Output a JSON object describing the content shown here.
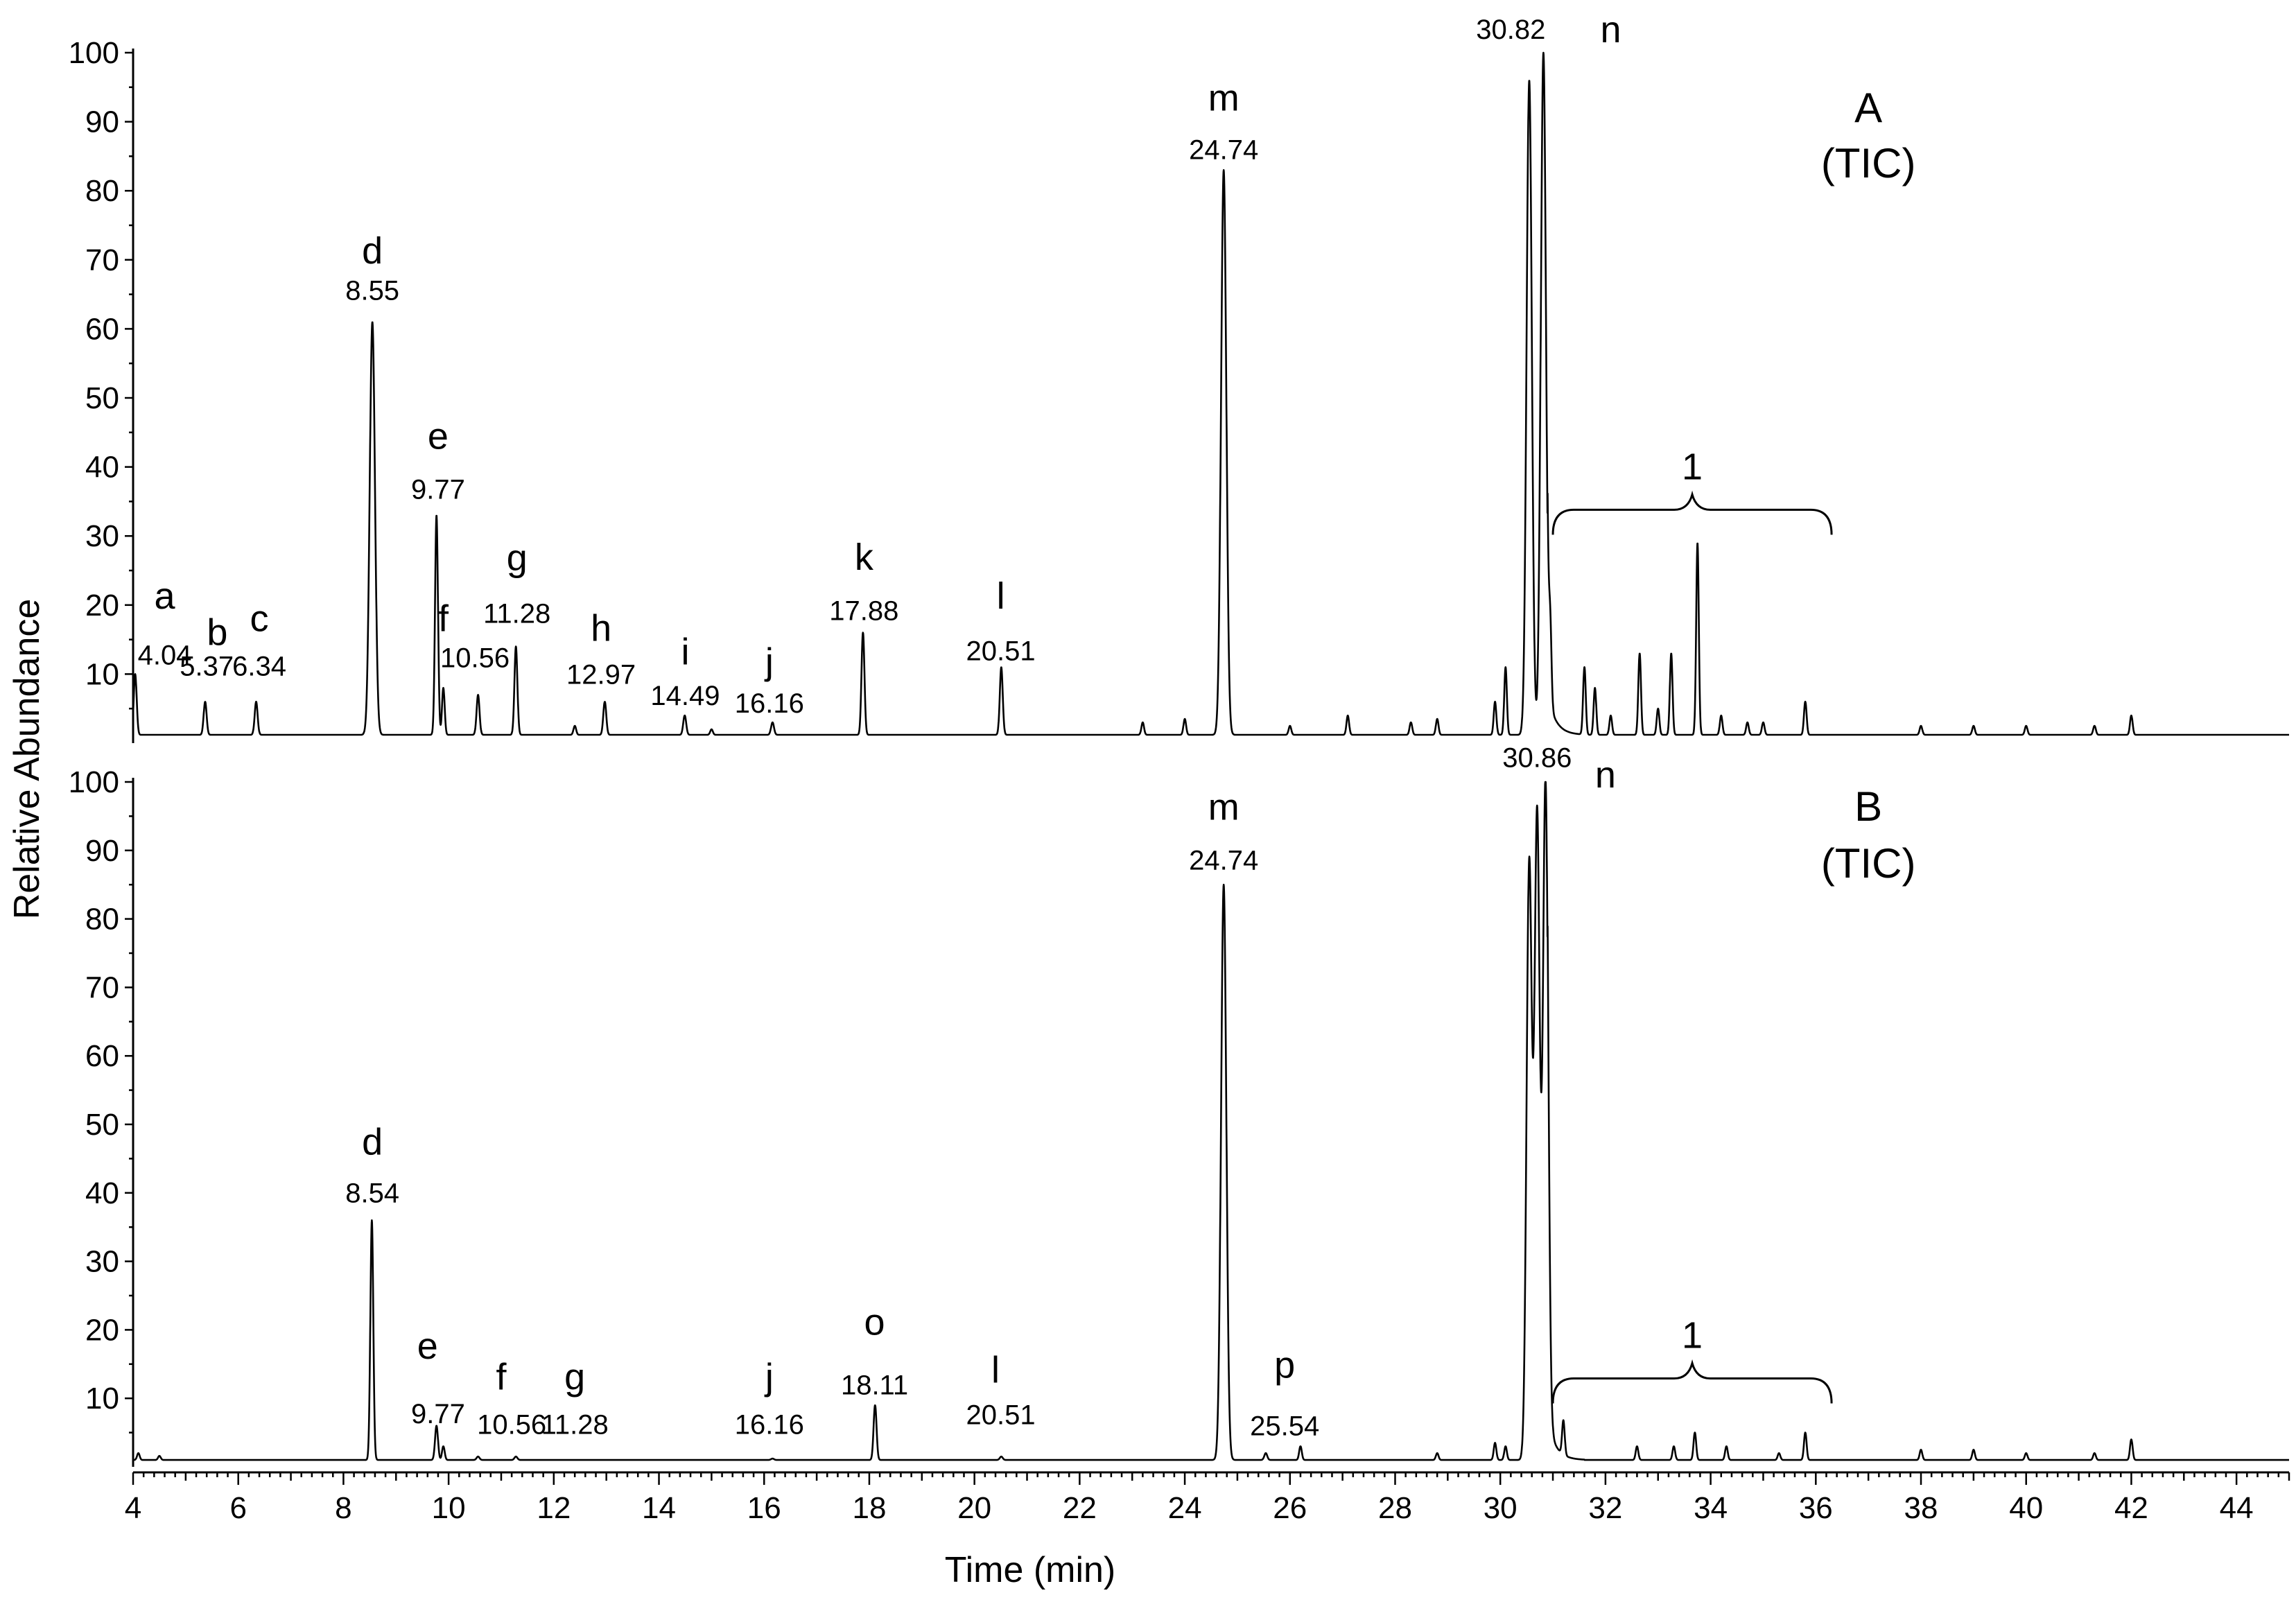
{
  "chart_data": {
    "type": "line",
    "xlabel": "Time (min)",
    "ylabel": "Relative Abundance",
    "xlim": [
      4,
      45
    ],
    "x_ticks": [
      "4",
      "6",
      "8",
      "10",
      "12",
      "14",
      "16",
      "18",
      "20",
      "22",
      "24",
      "26",
      "28",
      "30",
      "32",
      "34",
      "36",
      "38",
      "40",
      "42",
      "44"
    ],
    "y_ticks": [
      "10",
      "20",
      "30",
      "40",
      "50",
      "60",
      "70",
      "80",
      "90",
      "100"
    ],
    "panels": [
      {
        "id": "A",
        "label": "A",
        "sublabel": "(TIC)",
        "ylim": [
          0,
          100
        ],
        "baseline": 1.2,
        "peaks": [
          {
            "letter": "a",
            "time_label": "4.04",
            "x": 4.04,
            "y": 10
          },
          {
            "letter": "b",
            "time_label": "5.37",
            "x": 5.37,
            "y": 6
          },
          {
            "letter": "c",
            "time_label": "6.34",
            "x": 6.34,
            "y": 6
          },
          {
            "letter": "d",
            "time_label": "8.55",
            "x": 8.55,
            "y": 61
          },
          {
            "letter": "e",
            "time_label": "9.77",
            "x": 9.77,
            "y": 33
          },
          {
            "letter": "f",
            "time_label": "10.56",
            "x": 10.56,
            "y": 7
          },
          {
            "letter": "g",
            "time_label": "11.28",
            "x": 11.28,
            "y": 14
          },
          {
            "letter": "h",
            "time_label": "12.97",
            "x": 12.97,
            "y": 6
          },
          {
            "letter": "i",
            "time_label": "14.49",
            "x": 14.49,
            "y": 4
          },
          {
            "letter": "j",
            "time_label": "16.16",
            "x": 16.16,
            "y": 3
          },
          {
            "letter": "k",
            "time_label": "17.88",
            "x": 17.88,
            "y": 16
          },
          {
            "letter": "l",
            "time_label": "20.51",
            "x": 20.51,
            "y": 11
          },
          {
            "letter": "m",
            "time_label": "24.74",
            "x": 24.74,
            "y": 83
          },
          {
            "letter": "n",
            "time_label": "30.82",
            "x": 30.82,
            "y": 100
          }
        ],
        "minor_peaks": [
          {
            "x": 9.9,
            "y": 8
          },
          {
            "x": 12.4,
            "y": 2.5
          },
          {
            "x": 15.0,
            "y": 2
          },
          {
            "x": 23.2,
            "y": 3
          },
          {
            "x": 24.0,
            "y": 3.5
          },
          {
            "x": 26.0,
            "y": 2.5
          },
          {
            "x": 27.1,
            "y": 4
          },
          {
            "x": 28.3,
            "y": 3
          },
          {
            "x": 28.8,
            "y": 3.5
          },
          {
            "x": 29.9,
            "y": 6
          },
          {
            "x": 30.1,
            "y": 11
          },
          {
            "x": 30.55,
            "y": 96
          },
          {
            "x": 30.95,
            "y": 12
          },
          {
            "x": 31.6,
            "y": 11
          },
          {
            "x": 31.8,
            "y": 8
          },
          {
            "x": 32.1,
            "y": 4
          },
          {
            "x": 32.65,
            "y": 13
          },
          {
            "x": 33.0,
            "y": 5
          },
          {
            "x": 33.25,
            "y": 13
          },
          {
            "x": 33.75,
            "y": 29
          },
          {
            "x": 34.2,
            "y": 4
          },
          {
            "x": 34.7,
            "y": 3
          },
          {
            "x": 35.0,
            "y": 3
          },
          {
            "x": 35.8,
            "y": 6
          },
          {
            "x": 38.0,
            "y": 2.5
          },
          {
            "x": 39.0,
            "y": 2.5
          },
          {
            "x": 40.0,
            "y": 2.5
          },
          {
            "x": 41.3,
            "y": 2.5
          },
          {
            "x": 42.0,
            "y": 4
          }
        ],
        "bracket": {
          "label": "1",
          "x_start": 31.0,
          "x_end": 36.3
        }
      },
      {
        "id": "B",
        "label": "B",
        "sublabel": "(TIC)",
        "ylim": [
          0,
          100
        ],
        "baseline": 1.0,
        "peaks": [
          {
            "letter": "d",
            "time_label": "8.54",
            "x": 8.54,
            "y": 36
          },
          {
            "letter": "e",
            "time_label": "9.77",
            "x": 9.77,
            "y": 6
          },
          {
            "letter": "f",
            "time_label": "10.56",
            "x": 10.56,
            "y": 1.5
          },
          {
            "letter": "g",
            "time_label": "11.28",
            "x": 11.28,
            "y": 1.5
          },
          {
            "letter": "j",
            "time_label": "16.16",
            "x": 16.16,
            "y": 1.2
          },
          {
            "letter": "o",
            "time_label": "18.11",
            "x": 18.11,
            "y": 9
          },
          {
            "letter": "l",
            "time_label": "20.51",
            "x": 20.51,
            "y": 1.5
          },
          {
            "letter": "m",
            "time_label": "24.74",
            "x": 24.74,
            "y": 85
          },
          {
            "letter": "p",
            "time_label": "25.54",
            "x": 25.54,
            "y": 2
          },
          {
            "letter": "n",
            "time_label": "30.86",
            "x": 30.86,
            "y": 100
          }
        ],
        "minor_peaks": [
          {
            "x": 4.1,
            "y": 2
          },
          {
            "x": 4.5,
            "y": 1.6
          },
          {
            "x": 9.9,
            "y": 3
          },
          {
            "x": 26.2,
            "y": 3
          },
          {
            "x": 28.8,
            "y": 2
          },
          {
            "x": 29.9,
            "y": 3.5
          },
          {
            "x": 30.1,
            "y": 3
          },
          {
            "x": 30.55,
            "y": 88
          },
          {
            "x": 30.7,
            "y": 95
          },
          {
            "x": 31.2,
            "y": 6
          },
          {
            "x": 32.6,
            "y": 3
          },
          {
            "x": 33.3,
            "y": 3
          },
          {
            "x": 33.7,
            "y": 5
          },
          {
            "x": 34.3,
            "y": 3
          },
          {
            "x": 35.3,
            "y": 2
          },
          {
            "x": 35.8,
            "y": 5
          },
          {
            "x": 38.0,
            "y": 2.5
          },
          {
            "x": 39.0,
            "y": 2.5
          },
          {
            "x": 40.0,
            "y": 2
          },
          {
            "x": 41.3,
            "y": 2
          },
          {
            "x": 42.0,
            "y": 4
          }
        ],
        "bracket": {
          "label": "1",
          "x_start": 31.0,
          "x_end": 36.3
        }
      }
    ]
  }
}
